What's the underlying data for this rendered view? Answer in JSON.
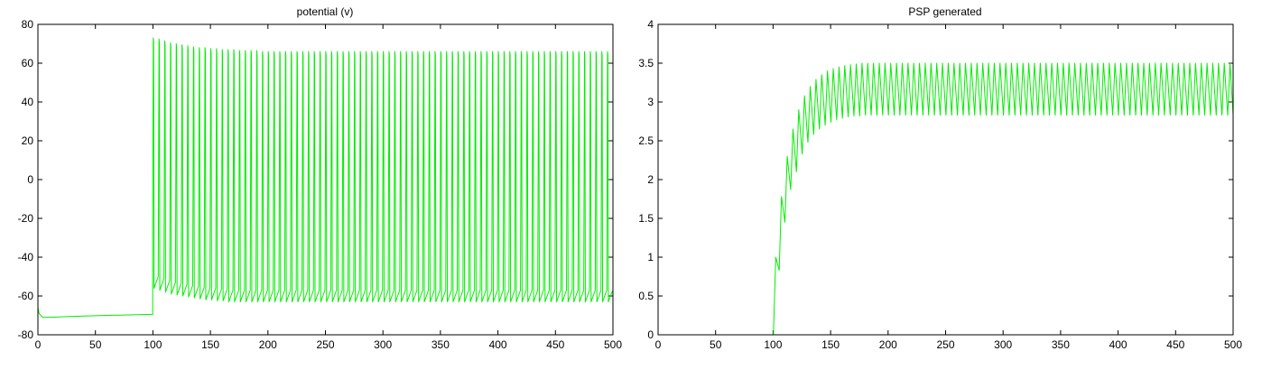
{
  "colors": {
    "trace": "#00ee00",
    "axes": "#000000",
    "background": "#ffffff"
  },
  "chart_data": [
    {
      "type": "line",
      "title": "potential (v)",
      "xlabel": "",
      "ylabel": "",
      "xlim": [
        0,
        500
      ],
      "ylim": [
        -80,
        80
      ],
      "xticks": [
        0,
        50,
        100,
        150,
        200,
        250,
        300,
        350,
        400,
        450,
        500
      ],
      "yticks": [
        -80,
        -60,
        -40,
        -20,
        0,
        20,
        40,
        60,
        80
      ],
      "grid": false,
      "legend": "none",
      "series": [
        {
          "baseline": {
            "x": [
              0,
              1,
              4,
              10,
              30,
              60,
              99
            ],
            "y": [
              -66,
              -69,
              -71,
              -71,
              -70.5,
              -70,
              -69.5
            ]
          },
          "spike_times": [
            100.3,
            105.3,
            110.3,
            115.3,
            120.3,
            125.3,
            130.3,
            135.3,
            140.3,
            145.3,
            150.3,
            155.3,
            160.3,
            165.3,
            170.3,
            175.3,
            180.3,
            185.3,
            190.3,
            195.3,
            200.3,
            205.3,
            210.3,
            215.3,
            220.3,
            225.3,
            230.3,
            235.3,
            240.3,
            245.3,
            250.3,
            255.3,
            260.3,
            265.3,
            270.3,
            275.3,
            280.3,
            285.3,
            290.3,
            295.3,
            300.3,
            305.3,
            310.3,
            315.3,
            320.3,
            325.3,
            330.3,
            335.3,
            340.3,
            345.3,
            350.3,
            355.3,
            360.3,
            365.3,
            370.3,
            375.3,
            380.3,
            385.3,
            390.3,
            395.3,
            400.3,
            405.3,
            410.3,
            415.3,
            420.3,
            425.3,
            430.3,
            435.3,
            440.3,
            445.3,
            450.3,
            455.3,
            460.3,
            465.3,
            470.3,
            475.3,
            480.3,
            485.3,
            490.3,
            495.3
          ],
          "spike_peaks": [
            73,
            72.5,
            71.5,
            70.5,
            70,
            69.5,
            69,
            68.5,
            68,
            68,
            67.5,
            67.5,
            67,
            67,
            67,
            66.5,
            66.5,
            66.5,
            66.5,
            66,
            66,
            66,
            66,
            66,
            66,
            66,
            66,
            66,
            66,
            66,
            66,
            66,
            66,
            66,
            66,
            66,
            66,
            66,
            66,
            66,
            66,
            66,
            66,
            66,
            66,
            66,
            66,
            66,
            66,
            66,
            66,
            66,
            66,
            66,
            66,
            66,
            66,
            66,
            66,
            66,
            66,
            66,
            66,
            66,
            66,
            66,
            66,
            66,
            66,
            66,
            66,
            66,
            66,
            66,
            66,
            66,
            66,
            66,
            66,
            66
          ],
          "trough_minima": [
            -56,
            -57,
            -58,
            -59,
            -59.5,
            -60,
            -60.5,
            -61,
            -61.5,
            -62,
            -62,
            -62.5,
            -62.5,
            -63,
            -63,
            -63,
            -63,
            -63,
            -63,
            -63,
            -63,
            -63,
            -63,
            -63,
            -63,
            -63,
            -63,
            -63,
            -63,
            -63,
            -63,
            -63,
            -63,
            -63,
            -63,
            -63,
            -63,
            -63,
            -63,
            -63,
            -63,
            -63,
            -63,
            -63,
            -63,
            -63,
            -63,
            -63,
            -63,
            -63,
            -63,
            -63,
            -63,
            -63,
            -63,
            -63,
            -63,
            -63,
            -63,
            -63,
            -63,
            -63,
            -63,
            -63,
            -63,
            -63,
            -63,
            -63,
            -63,
            -63,
            -63,
            -63,
            -63,
            -63,
            -63,
            -63,
            -63,
            -63,
            -63,
            -63
          ]
        }
      ]
    },
    {
      "type": "line",
      "title": "PSP generated",
      "xlabel": "",
      "ylabel": "",
      "xlim": [
        0,
        500
      ],
      "ylim": [
        0,
        4
      ],
      "xticks": [
        0,
        50,
        100,
        150,
        200,
        250,
        300,
        350,
        400,
        450,
        500
      ],
      "yticks": [
        0,
        0.5,
        1,
        1.5,
        2,
        2.5,
        3,
        3.5,
        4
      ],
      "grid": false,
      "legend": "none",
      "series": [
        {
          "onset": 100.3,
          "peak_times": [
            102.3,
            107.3,
            112.3,
            117.3,
            122.3,
            127.3,
            132.3,
            137.3,
            142.3,
            147.3,
            152.3,
            157.3,
            162.3,
            167.3,
            172.3,
            177.3,
            182.3,
            187.3,
            192.3,
            197.3,
            202.3,
            207.3,
            212.3,
            217.3,
            222.3,
            227.3,
            232.3,
            237.3,
            242.3,
            247.3,
            252.3,
            257.3,
            262.3,
            267.3,
            272.3,
            277.3,
            282.3,
            287.3,
            292.3,
            297.3,
            302.3,
            307.3,
            312.3,
            317.3,
            322.3,
            327.3,
            332.3,
            337.3,
            342.3,
            347.3,
            352.3,
            357.3,
            362.3,
            367.3,
            372.3,
            377.3,
            382.3,
            387.3,
            392.3,
            397.3,
            402.3,
            407.3,
            412.3,
            417.3,
            422.3,
            427.3,
            432.3,
            437.3,
            442.3,
            447.3,
            452.3,
            457.3,
            462.3,
            467.3,
            472.3,
            477.3,
            482.3,
            487.3,
            492.3,
            497.3
          ],
          "peaks": [
            1.0,
            1.78,
            2.3,
            2.65,
            2.9,
            3.08,
            3.2,
            3.29,
            3.35,
            3.4,
            3.43,
            3.45,
            3.47,
            3.48,
            3.49,
            3.5,
            3.5,
            3.5,
            3.5,
            3.5,
            3.5,
            3.5,
            3.5,
            3.5,
            3.5,
            3.5,
            3.5,
            3.5,
            3.5,
            3.5,
            3.5,
            3.5,
            3.5,
            3.5,
            3.5,
            3.5,
            3.5,
            3.5,
            3.5,
            3.5,
            3.5,
            3.5,
            3.5,
            3.5,
            3.5,
            3.5,
            3.5,
            3.5,
            3.5,
            3.5,
            3.5,
            3.5,
            3.5,
            3.5,
            3.5,
            3.5,
            3.5,
            3.5,
            3.5,
            3.5,
            3.5,
            3.5,
            3.5,
            3.5,
            3.5,
            3.5,
            3.5,
            3.5,
            3.5,
            3.5,
            3.5,
            3.5,
            3.5,
            3.5,
            3.5,
            3.5,
            3.5,
            3.5,
            3.5,
            3.5
          ],
          "trough_times": [
            105.3,
            110.3,
            115.3,
            120.3,
            125.3,
            130.3,
            135.3,
            140.3,
            145.3,
            150.3,
            155.3,
            160.3,
            165.3,
            170.3,
            175.3,
            180.3,
            185.3,
            190.3,
            195.3,
            200.3,
            205.3,
            210.3,
            215.3,
            220.3,
            225.3,
            230.3,
            235.3,
            240.3,
            245.3,
            250.3,
            255.3,
            260.3,
            265.3,
            270.3,
            275.3,
            280.3,
            285.3,
            290.3,
            295.3,
            300.3,
            305.3,
            310.3,
            315.3,
            320.3,
            325.3,
            330.3,
            335.3,
            340.3,
            345.3,
            350.3,
            355.3,
            360.3,
            365.3,
            370.3,
            375.3,
            380.3,
            385.3,
            390.3,
            395.3,
            400.3,
            405.3,
            410.3,
            415.3,
            420.3,
            425.3,
            430.3,
            435.3,
            440.3,
            445.3,
            450.3,
            455.3,
            460.3,
            465.3,
            470.3,
            475.3,
            480.3,
            485.3,
            490.3,
            495.3,
            500
          ],
          "troughs": [
            0.83,
            1.45,
            1.87,
            2.1,
            2.33,
            2.48,
            2.58,
            2.65,
            2.7,
            2.74,
            2.77,
            2.79,
            2.81,
            2.82,
            2.82,
            2.83,
            2.83,
            2.83,
            2.83,
            2.83,
            2.83,
            2.83,
            2.83,
            2.83,
            2.83,
            2.83,
            2.83,
            2.83,
            2.83,
            2.83,
            2.83,
            2.83,
            2.83,
            2.83,
            2.83,
            2.83,
            2.83,
            2.83,
            2.83,
            2.83,
            2.83,
            2.83,
            2.83,
            2.83,
            2.83,
            2.83,
            2.83,
            2.83,
            2.83,
            2.83,
            2.83,
            2.83,
            2.83,
            2.83,
            2.83,
            2.83,
            2.83,
            2.83,
            2.83,
            2.83,
            2.83,
            2.83,
            2.83,
            2.83,
            2.83,
            2.83,
            2.83,
            2.83,
            2.83,
            2.83,
            2.83,
            2.83,
            2.83,
            2.83,
            2.83,
            2.83,
            2.83,
            2.83,
            2.83,
            2.83
          ]
        }
      ]
    }
  ]
}
